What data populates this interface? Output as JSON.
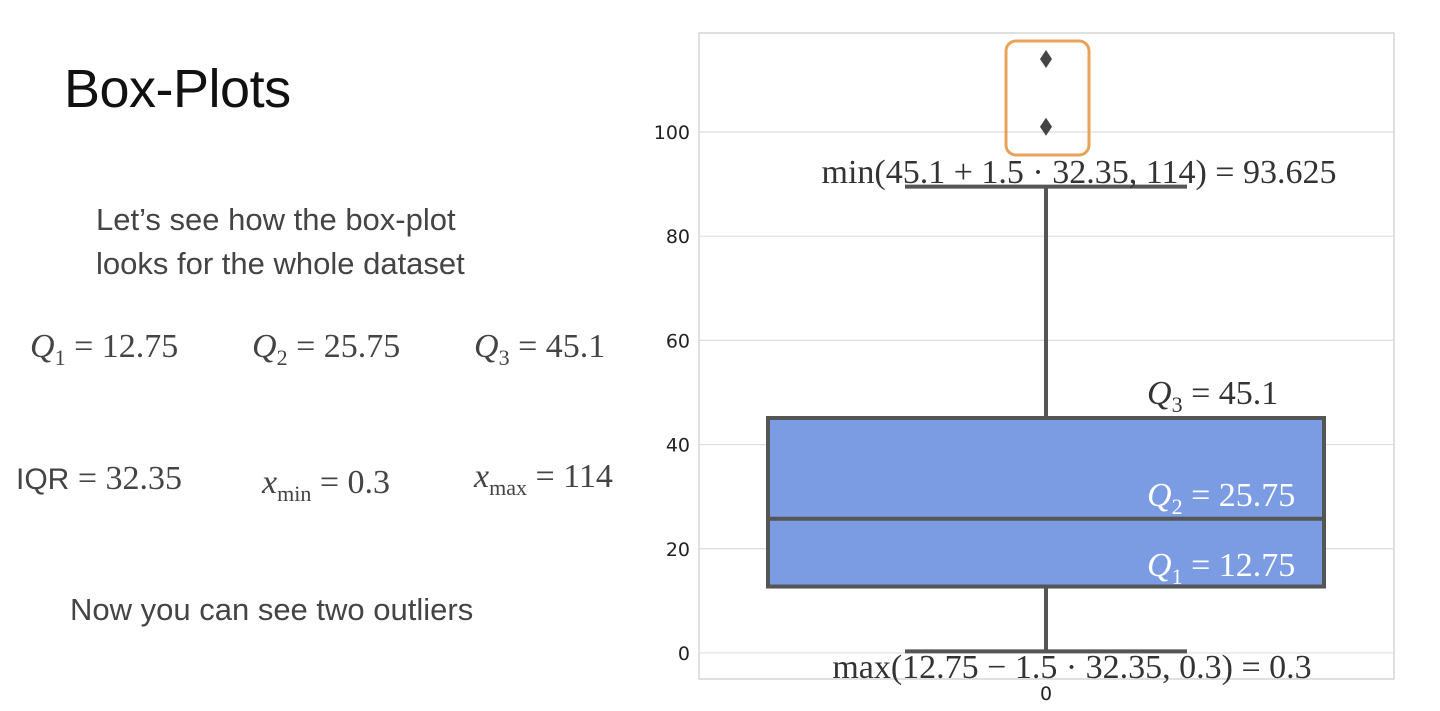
{
  "slide": {
    "title": "Box-Plots",
    "intro_line1": "Let’s see how the box-plot",
    "intro_line2": "looks for the whole dataset",
    "q1_label": "Q",
    "q1_sub": "1",
    "q1_value": " = 12.75",
    "q2_label": "Q",
    "q2_sub": "2",
    "q2_value": " = 25.75",
    "q3_label": "Q",
    "q3_sub": "3",
    "q3_value": " = 45.1",
    "iqr_label": "IQR",
    "iqr_value": " = 32.35",
    "xmin_label": "x",
    "xmin_sub": "min",
    "xmin_value": " = 0.3",
    "xmax_label": "x",
    "xmax_sub": "max",
    "xmax_value": " = 114",
    "outro": "Now you can see two outliers"
  },
  "chart_data": {
    "type": "box",
    "categories": [
      "0"
    ],
    "ylim": [
      -5,
      119
    ],
    "yticks": [
      0,
      20,
      40,
      60,
      80,
      100
    ],
    "grid": true,
    "box": {
      "q1": 12.75,
      "median": 25.75,
      "q3": 45.1,
      "whisker_low": 0.3,
      "whisker_high": 89.5
    },
    "outliers": [
      101,
      114
    ],
    "colors": {
      "box_fill": "#7b9be3",
      "box_edge": "#555555",
      "highlight": "#e9a258",
      "grid": "#dddddd"
    },
    "annotations": {
      "upper_fence": "min(45.1 + 1.5 · 32.35, 114) = 93.625",
      "lower_fence": "max(12.75 − 1.5 · 32.35, 0.3) = 0.3",
      "q3_annot": "Q",
      "q3_annot_sub": "3",
      "q3_annot_val": " = 45.1",
      "q2_annot": "Q",
      "q2_annot_sub": "2",
      "q2_annot_val": " = 25.75",
      "q1_annot": "Q",
      "q1_annot_sub": "1",
      "q1_annot_val": " = 12.75"
    }
  }
}
